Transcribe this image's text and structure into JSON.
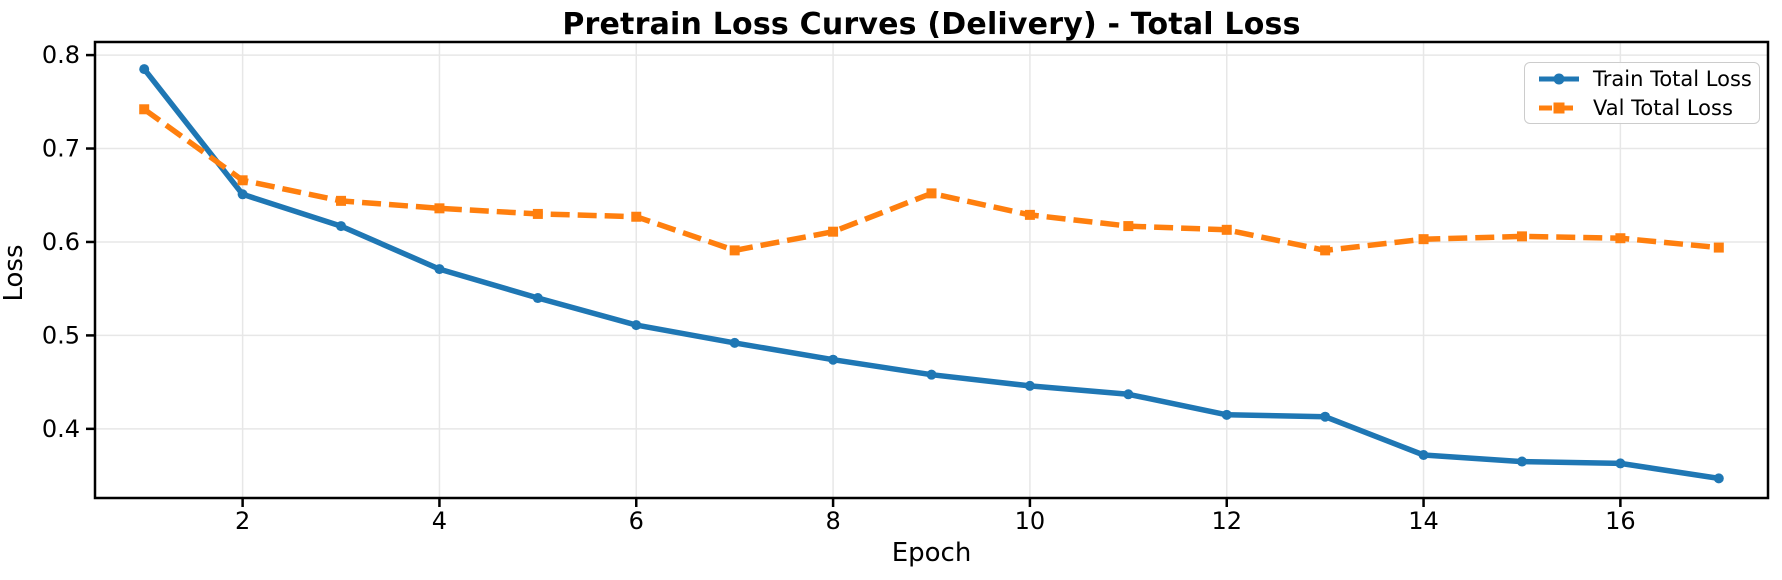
{
  "chart_data": {
    "type": "line",
    "title": "Pretrain Loss Curves (Delivery) - Total Loss",
    "xlabel": "Epoch",
    "ylabel": "Loss",
    "x": [
      1,
      2,
      3,
      4,
      5,
      6,
      7,
      8,
      9,
      10,
      11,
      12,
      13,
      14,
      15,
      16,
      17
    ],
    "series": [
      {
        "name": "Train Total Loss",
        "color": "#1f77b4",
        "marker": "circle",
        "line_style": "solid",
        "values": [
          0.785,
          0.651,
          0.617,
          0.571,
          0.54,
          0.511,
          0.492,
          0.474,
          0.458,
          0.446,
          0.437,
          0.415,
          0.413,
          0.372,
          0.365,
          0.363,
          0.347
        ]
      },
      {
        "name": "Val Total Loss",
        "color": "#ff7f0e",
        "marker": "square",
        "line_style": "dashed",
        "values": [
          0.742,
          0.666,
          0.644,
          0.636,
          0.63,
          0.627,
          0.591,
          0.611,
          0.652,
          0.629,
          0.617,
          0.613,
          0.591,
          0.603,
          0.606,
          0.604,
          0.594
        ]
      }
    ],
    "xlim": [
      0.5,
      17.5
    ],
    "ylim": [
      0.326,
      0.814
    ],
    "xticks": [
      2,
      4,
      6,
      8,
      10,
      12,
      14,
      16
    ],
    "yticks": [
      0.4,
      0.5,
      0.6,
      0.7,
      0.8
    ],
    "grid": true,
    "legend_position": "upper right",
    "colors": {
      "background": "#ffffff",
      "grid": "#e7e7e7",
      "axis": "#000000",
      "text": "#000000",
      "legend_border": "#cccccc"
    }
  }
}
